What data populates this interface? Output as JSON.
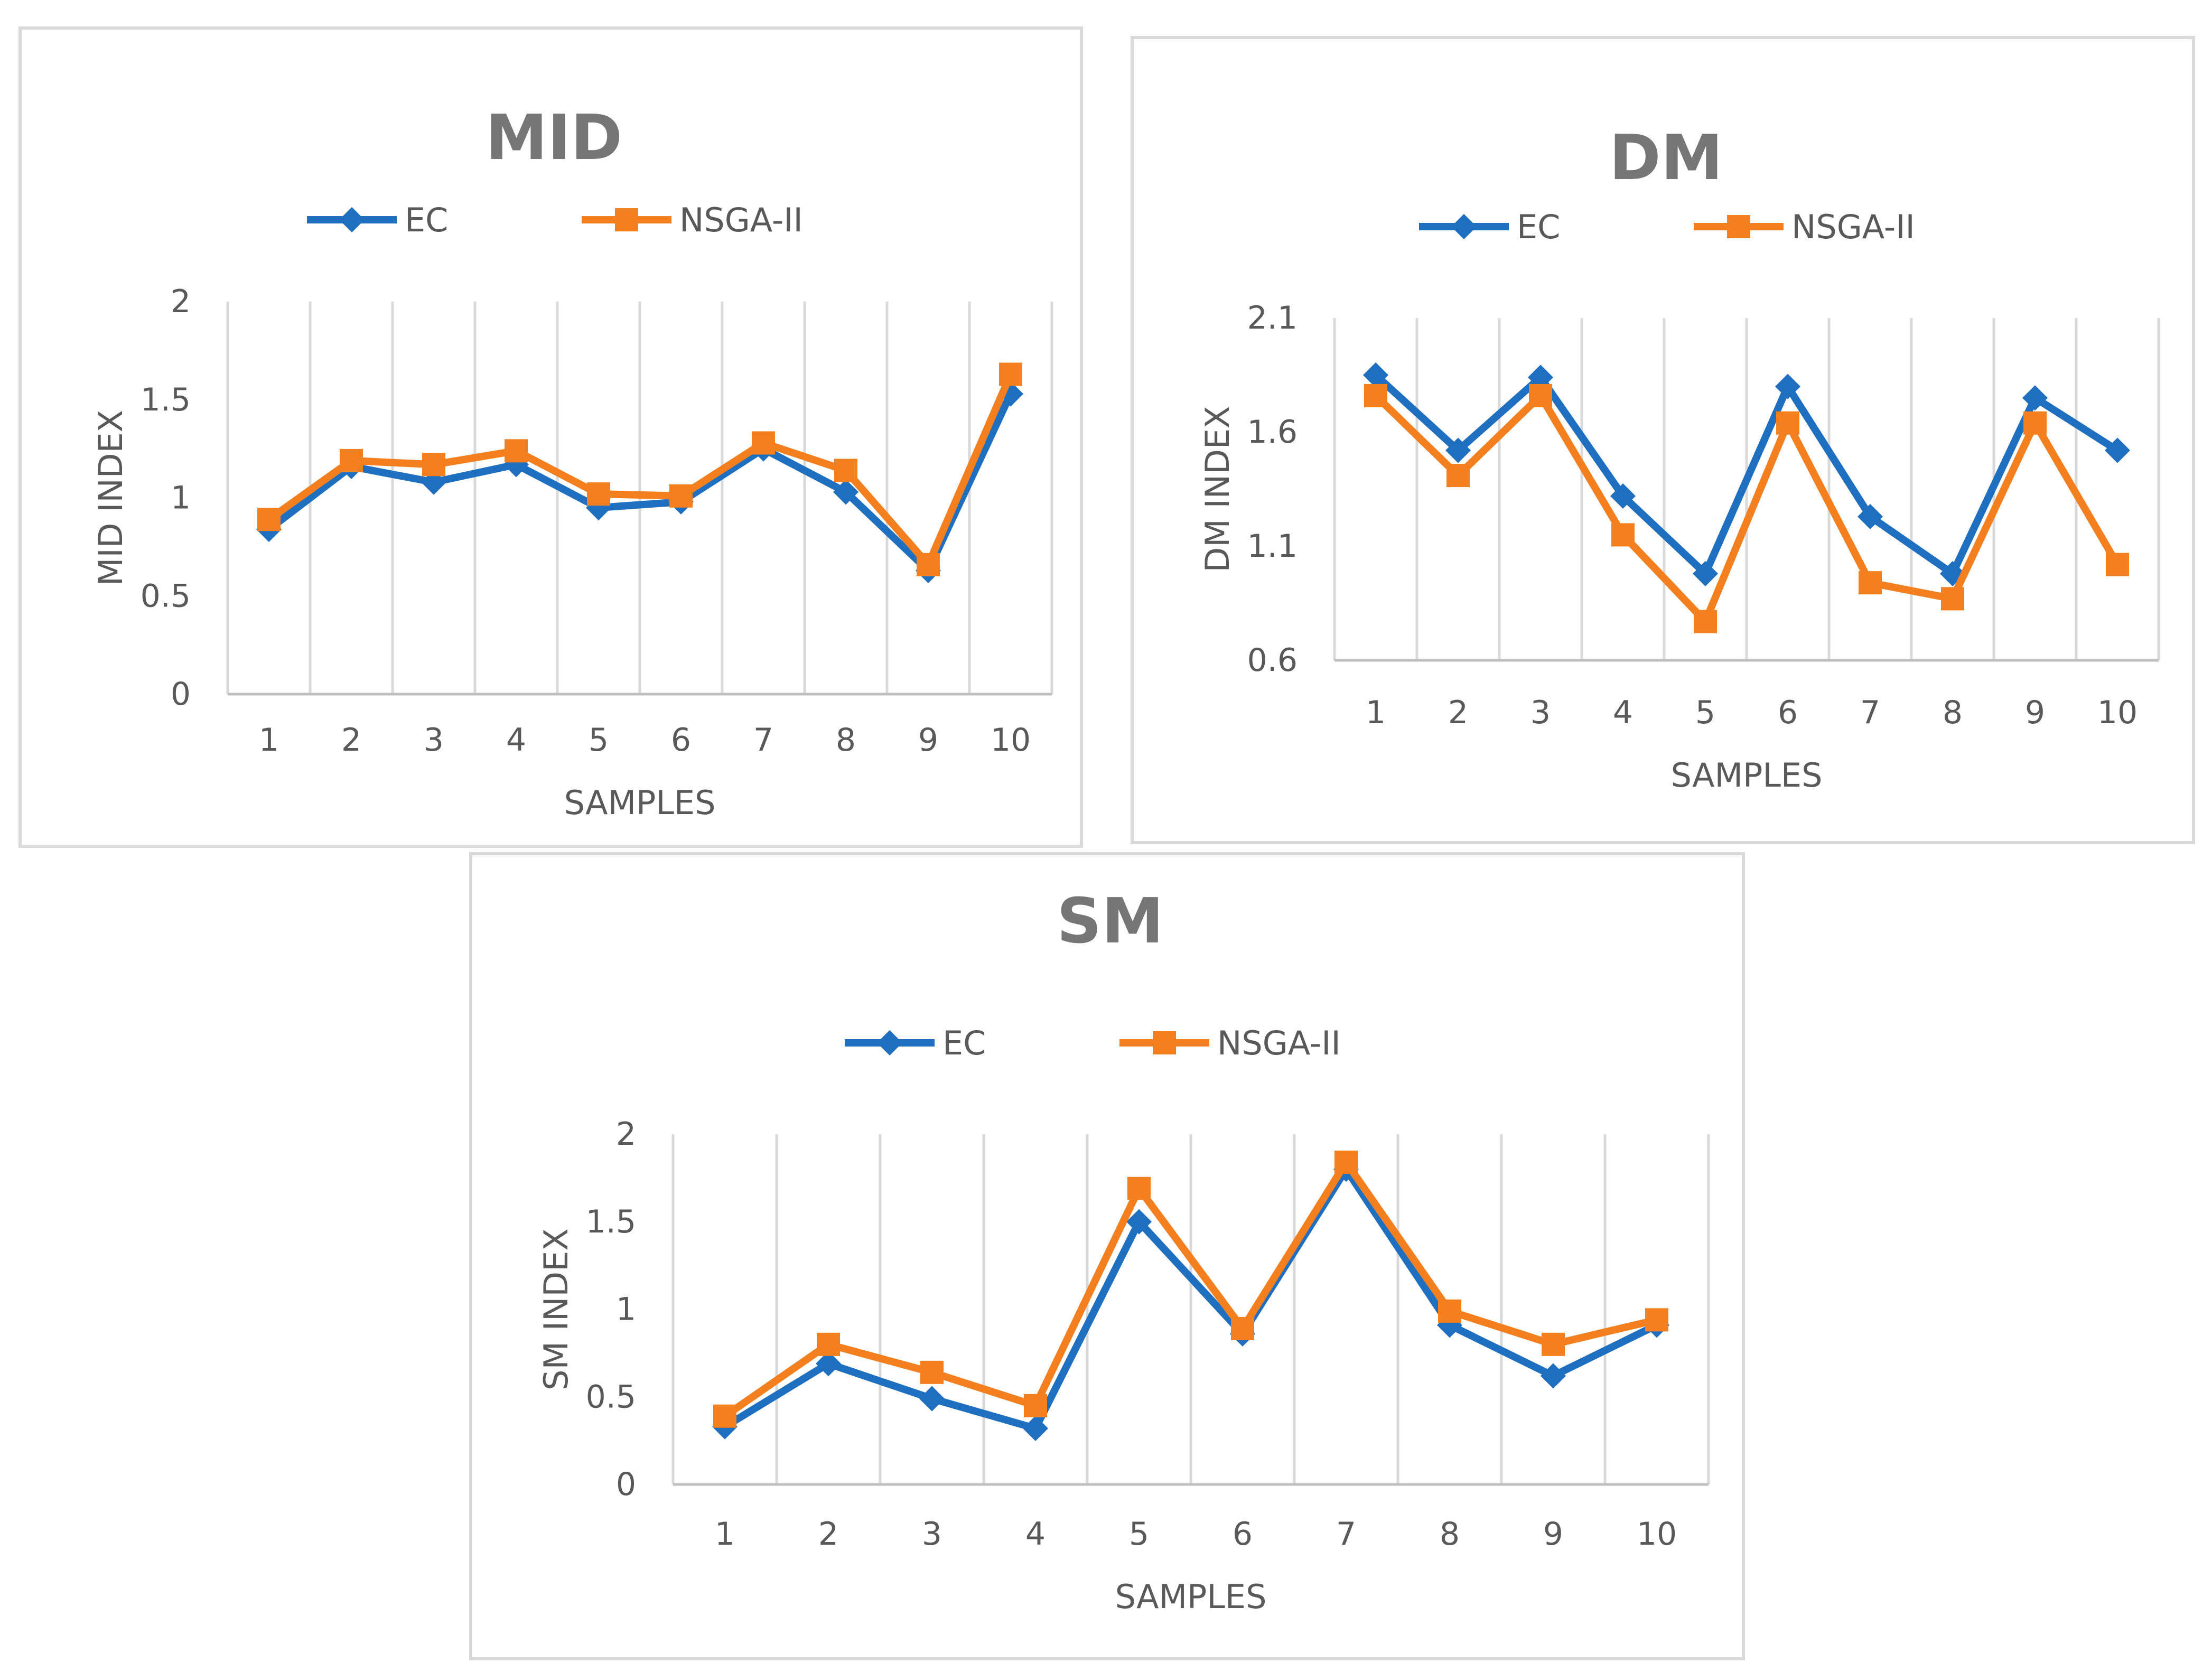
{
  "colors": {
    "ec": "#1f6fc0",
    "nsga": "#f47f1f",
    "grid": "#d9d9d9",
    "axis": "#bfbfbf",
    "text": "#595959",
    "title": "#767676"
  },
  "chart_data": [
    {
      "id": "mid",
      "type": "line",
      "title": "MID",
      "xlabel": "SAMPLES",
      "ylabel": "MID INDEX",
      "categories": [
        "1",
        "2",
        "3",
        "4",
        "5",
        "6",
        "7",
        "8",
        "9",
        "10"
      ],
      "ylim": [
        0,
        2
      ],
      "yticks": [
        "0",
        "0.5",
        "1",
        "1.5",
        "2"
      ],
      "legend_position": "top",
      "grid": "vertical",
      "series": [
        {
          "name": "EC",
          "marker": "diamond",
          "values": [
            0.84,
            1.16,
            1.08,
            1.17,
            0.95,
            0.98,
            1.25,
            1.03,
            0.63,
            1.53
          ]
        },
        {
          "name": "NSGA-II",
          "marker": "square",
          "values": [
            0.89,
            1.19,
            1.17,
            1.24,
            1.02,
            1.01,
            1.28,
            1.14,
            0.66,
            1.63
          ]
        }
      ]
    },
    {
      "id": "dm",
      "type": "line",
      "title": "DM",
      "xlabel": "SAMPLES",
      "ylabel": "DM INDEX",
      "categories": [
        "1",
        "2",
        "3",
        "4",
        "5",
        "6",
        "7",
        "8",
        "9",
        "10"
      ],
      "ylim": [
        0.6,
        2.1
      ],
      "yticks": [
        "0.6",
        "1.1",
        "1.6",
        "2.1"
      ],
      "legend_position": "top",
      "grid": "vertical",
      "series": [
        {
          "name": "EC",
          "marker": "diamond",
          "values": [
            1.85,
            1.52,
            1.84,
            1.32,
            0.98,
            1.8,
            1.23,
            0.98,
            1.75,
            1.52
          ]
        },
        {
          "name": "NSGA-II",
          "marker": "square",
          "values": [
            1.76,
            1.41,
            1.76,
            1.15,
            0.77,
            1.64,
            0.94,
            0.87,
            1.64,
            1.02
          ]
        }
      ]
    },
    {
      "id": "sm",
      "type": "line",
      "title": "SM",
      "xlabel": "SAMPLES",
      "ylabel": "SM INDEX",
      "categories": [
        "1",
        "2",
        "3",
        "4",
        "5",
        "6",
        "7",
        "8",
        "9",
        "10"
      ],
      "ylim": [
        0,
        2
      ],
      "yticks": [
        "0",
        "0.5",
        "1",
        "1.5",
        "2"
      ],
      "legend_position": "top",
      "grid": "vertical",
      "series": [
        {
          "name": "EC",
          "marker": "diamond",
          "values": [
            0.33,
            0.69,
            0.49,
            0.32,
            1.5,
            0.86,
            1.8,
            0.91,
            0.62,
            0.91
          ]
        },
        {
          "name": "NSGA-II",
          "marker": "square",
          "values": [
            0.39,
            0.8,
            0.64,
            0.45,
            1.69,
            0.89,
            1.84,
            0.99,
            0.8,
            0.94
          ]
        }
      ]
    }
  ]
}
